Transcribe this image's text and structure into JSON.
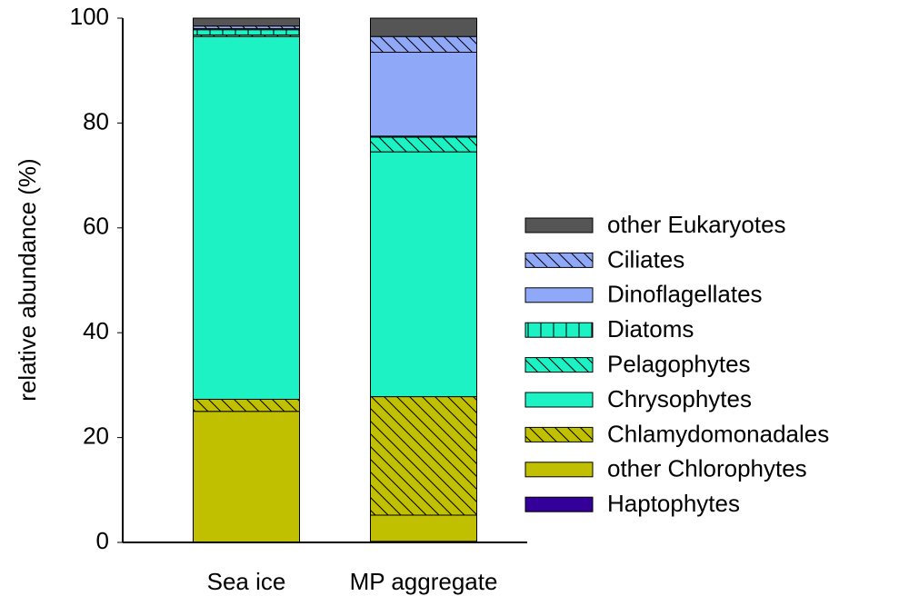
{
  "chart_data": {
    "type": "stacked_bar",
    "y_label": "relative abundance (%)",
    "categories": [
      "Sea ice",
      "MP aggregate"
    ],
    "ylim": [
      0,
      100
    ],
    "yticks": [
      0,
      20,
      40,
      60,
      80,
      100
    ],
    "series": [
      {
        "name": "Haptophytes",
        "color": "#330099",
        "hatch": "none",
        "values": [
          0,
          0.2
        ]
      },
      {
        "name": "other Chlorophytes",
        "color": "#c0c000",
        "hatch": "none",
        "values": [
          25,
          5
        ]
      },
      {
        "name": "Chlamydomonadales",
        "color": "#c0c000",
        "hatch": "diagonal",
        "values": [
          2.3,
          22.6
        ]
      },
      {
        "name": "Chrysophytes",
        "color": "#1cf2c4",
        "hatch": "none",
        "values": [
          69.2,
          46.7
        ]
      },
      {
        "name": "Pelagophytes",
        "color": "#1cf2c4",
        "hatch": "diagonal",
        "values": [
          0.3,
          2.8
        ]
      },
      {
        "name": "Diatoms",
        "color": "#1cf2c4",
        "hatch": "vertical",
        "values": [
          1,
          0.2
        ]
      },
      {
        "name": "Dinoflagellates",
        "color": "#8fa8f7",
        "hatch": "none",
        "values": [
          0.2,
          16
        ]
      },
      {
        "name": "Ciliates",
        "color": "#8fa8f7",
        "hatch": "diagonal",
        "values": [
          0.5,
          3
        ]
      },
      {
        "name": "other Eukaryotes",
        "color": "#555555",
        "hatch": "none",
        "values": [
          1.5,
          3.5
        ]
      }
    ]
  }
}
